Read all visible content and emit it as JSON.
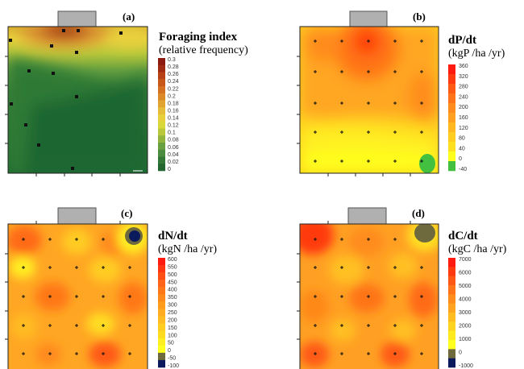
{
  "panels": [
    {
      "id": "a",
      "label": "(a)",
      "title": "Foraging index",
      "subtitle": "(relative frequency)",
      "legend_ticks": [
        "0.3",
        "0.28",
        "0.26",
        "0.24",
        "0.22",
        "0.2",
        "0.18",
        "0.16",
        "0.14",
        "0.12",
        "0.1",
        "0.08",
        "0.06",
        "0.04",
        "0.02",
        "0"
      ],
      "legend_colors": [
        "#8b1a10",
        "#a02a12",
        "#b84016",
        "#c8581a",
        "#d47020",
        "#dc8a28",
        "#e2a430",
        "#e6bd38",
        "#e8d03c",
        "#d8d83a",
        "#b8c83a",
        "#90b43c",
        "#68a040",
        "#4c8c40",
        "#347838",
        "#226630"
      ]
    },
    {
      "id": "b",
      "label": "(b)",
      "title": "dP/dt",
      "subtitle": "(kgP /ha /yr)",
      "legend_ticks": [
        "360",
        "320",
        "280",
        "240",
        "200",
        "160",
        "120",
        "80",
        "40",
        "0",
        "-40"
      ],
      "legend_colors": [
        "#ff1a10",
        "#ff3a10",
        "#ff5a14",
        "#ff7418",
        "#ff8c1c",
        "#ffa020",
        "#ffb820",
        "#ffcc20",
        "#ffe020",
        "#ffff1e",
        "#44c040"
      ]
    },
    {
      "id": "c",
      "label": "(c)",
      "title": "dN/dt",
      "subtitle": "(kgN /ha /yr)",
      "legend_ticks": [
        "600",
        "550",
        "500",
        "450",
        "400",
        "350",
        "300",
        "250",
        "200",
        "150",
        "100",
        "50",
        "0",
        "-50",
        "-100"
      ],
      "legend_colors": [
        "#ff1a10",
        "#ff3410",
        "#ff4e14",
        "#ff6418",
        "#ff7818",
        "#ff8a1c",
        "#ff9c1c",
        "#ffac20",
        "#ffbc20",
        "#ffcc20",
        "#ffdc20",
        "#ffee20",
        "#ffff20",
        "#6e6a3e",
        "#0a1a5c"
      ]
    },
    {
      "id": "d",
      "label": "(d)",
      "title": "dC/dt",
      "subtitle": "(kgC /ha /yr)",
      "legend_ticks": [
        "7000",
        "6000",
        "5000",
        "4000",
        "3000",
        "2000",
        "1000",
        "0",
        "-1000"
      ],
      "legend_colors": [
        "#ff1a10",
        "#ff3a10",
        "#ff5814",
        "#ff7418",
        "#ff8c1c",
        "#ffa420",
        "#ffbc20",
        "#ffd420",
        "#ffea20",
        "#ffff20",
        "#6e6a3e",
        "#0a1a5c"
      ]
    }
  ]
}
